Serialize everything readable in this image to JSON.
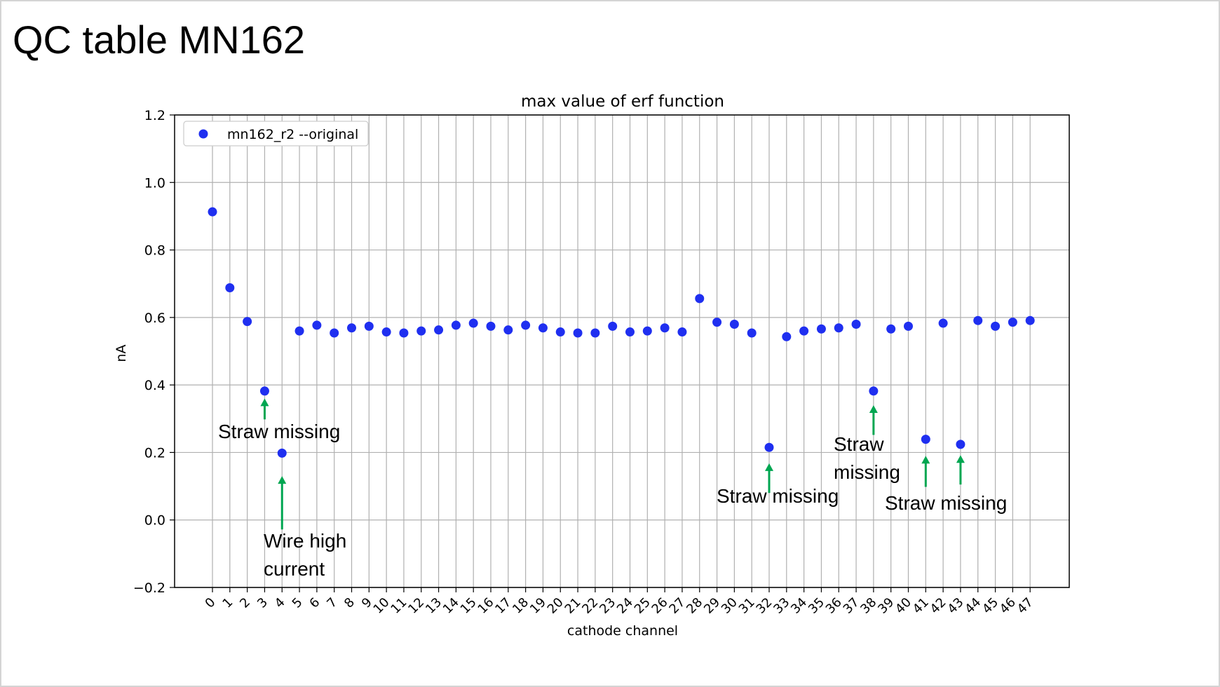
{
  "slide": {
    "title": "QC table MN162"
  },
  "chart_data": {
    "type": "scatter",
    "title": "max value of erf function",
    "xlabel": "cathode channel",
    "ylabel": "nA",
    "ylim": [
      -0.2,
      1.2
    ],
    "yticks": [
      -0.2,
      0.0,
      0.2,
      0.4,
      0.6,
      0.8,
      1.0,
      1.2
    ],
    "ytick_labels": [
      "−0.2",
      "0.0",
      "0.2",
      "0.4",
      "0.6",
      "0.8",
      "1.0",
      "1.2"
    ],
    "grid": true,
    "legend_position": "top-left",
    "series": [
      {
        "name": "mn162_r2 --original",
        "color": "#1f2ff0",
        "x": [
          0,
          1,
          2,
          3,
          4,
          5,
          6,
          7,
          8,
          9,
          10,
          11,
          12,
          13,
          14,
          15,
          16,
          17,
          18,
          19,
          20,
          21,
          22,
          23,
          24,
          25,
          26,
          27,
          28,
          29,
          30,
          31,
          32,
          33,
          34,
          35,
          36,
          37,
          38,
          39,
          40,
          41,
          42,
          43,
          44,
          45,
          46,
          47
        ],
        "y": [
          0.913,
          0.688,
          0.588,
          0.382,
          0.198,
          0.56,
          0.577,
          0.554,
          0.569,
          0.574,
          0.557,
          0.554,
          0.56,
          0.563,
          0.577,
          0.583,
          0.574,
          0.563,
          0.577,
          0.569,
          0.557,
          0.554,
          0.554,
          0.574,
          0.557,
          0.56,
          0.569,
          0.557,
          0.656,
          0.586,
          0.58,
          0.554,
          0.215,
          0.543,
          0.56,
          0.566,
          0.569,
          0.58,
          0.382,
          0.566,
          0.574,
          0.239,
          0.583,
          0.224,
          0.591,
          0.574,
          0.586,
          0.591
        ]
      }
    ],
    "annotations": [
      {
        "id": "a3",
        "lines": [
          "Straw missing"
        ],
        "arrow_x": 3,
        "arrow_from": 0.298,
        "arrow_to": 0.36,
        "color": "#00a651"
      },
      {
        "id": "a4",
        "lines": [
          "Wire high",
          "current"
        ],
        "arrow_x": 4,
        "arrow_from": -0.028,
        "arrow_to": 0.13,
        "color": "#00a651"
      },
      {
        "id": "a32",
        "lines": [
          "Straw missing"
        ],
        "arrow_x": 32,
        "arrow_from": 0.08,
        "arrow_to": 0.168,
        "color": "#00a651"
      },
      {
        "id": "a38",
        "lines": [
          "Straw",
          "missing"
        ],
        "arrow_x": 38,
        "arrow_from": 0.252,
        "arrow_to": 0.34,
        "color": "#00a651"
      },
      {
        "id": "a41",
        "lines": [
          "Straw missing"
        ],
        "arrow_x": 41,
        "arrow_from": 0.098,
        "arrow_to": 0.19,
        "color": "#00a651"
      },
      {
        "id": "a43",
        "lines": [
          "Straw missing"
        ],
        "arrow_x": 43,
        "arrow_from": 0.105,
        "arrow_to": 0.192,
        "color": "#00a651"
      }
    ]
  }
}
